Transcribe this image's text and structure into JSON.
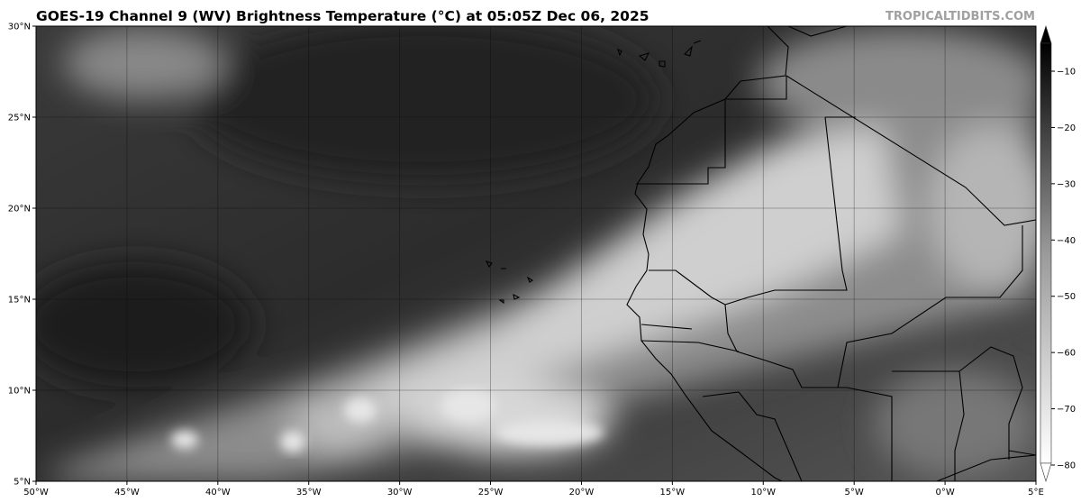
{
  "title": "GOES-19 Channel 9 (WV) Brightness Temperature (°C) at 05:05Z Dec 06, 2025",
  "watermark": "TROPICALTIDBITS.COM",
  "map": {
    "lon_range": [
      -50,
      5
    ],
    "lat_range": [
      5,
      30
    ],
    "lat_ticks": [
      {
        "v": 30,
        "label": "30°N"
      },
      {
        "v": 25,
        "label": "25°N"
      },
      {
        "v": 20,
        "label": "20°N"
      },
      {
        "v": 15,
        "label": "15°N"
      },
      {
        "v": 10,
        "label": "10°N"
      },
      {
        "v": 5,
        "label": "5°N"
      }
    ],
    "lon_ticks": [
      {
        "v": -50,
        "label": "50°W"
      },
      {
        "v": -45,
        "label": "45°W"
      },
      {
        "v": -40,
        "label": "40°W"
      },
      {
        "v": -35,
        "label": "35°W"
      },
      {
        "v": -30,
        "label": "30°W"
      },
      {
        "v": -25,
        "label": "25°W"
      },
      {
        "v": -20,
        "label": "20°W"
      },
      {
        "v": -15,
        "label": "15°W"
      },
      {
        "v": -10,
        "label": "10°W"
      },
      {
        "v": -5,
        "label": "5°W"
      },
      {
        "v": 0,
        "label": "0°W"
      },
      {
        "v": 5,
        "label": "5°E"
      }
    ],
    "gridlines": true
  },
  "colorbar": {
    "range": [
      -80,
      -5
    ],
    "ticks": [
      {
        "v": -10,
        "label": "−10"
      },
      {
        "v": -20,
        "label": "−20"
      },
      {
        "v": -30,
        "label": "−30"
      },
      {
        "v": -40,
        "label": "−40"
      },
      {
        "v": -50,
        "label": "−50"
      },
      {
        "v": -60,
        "label": "−60"
      },
      {
        "v": -70,
        "label": "−70"
      },
      {
        "v": -80,
        "label": "−80"
      }
    ],
    "colors": {
      "cold": "#ffffff",
      "warm": "#000000"
    }
  }
}
